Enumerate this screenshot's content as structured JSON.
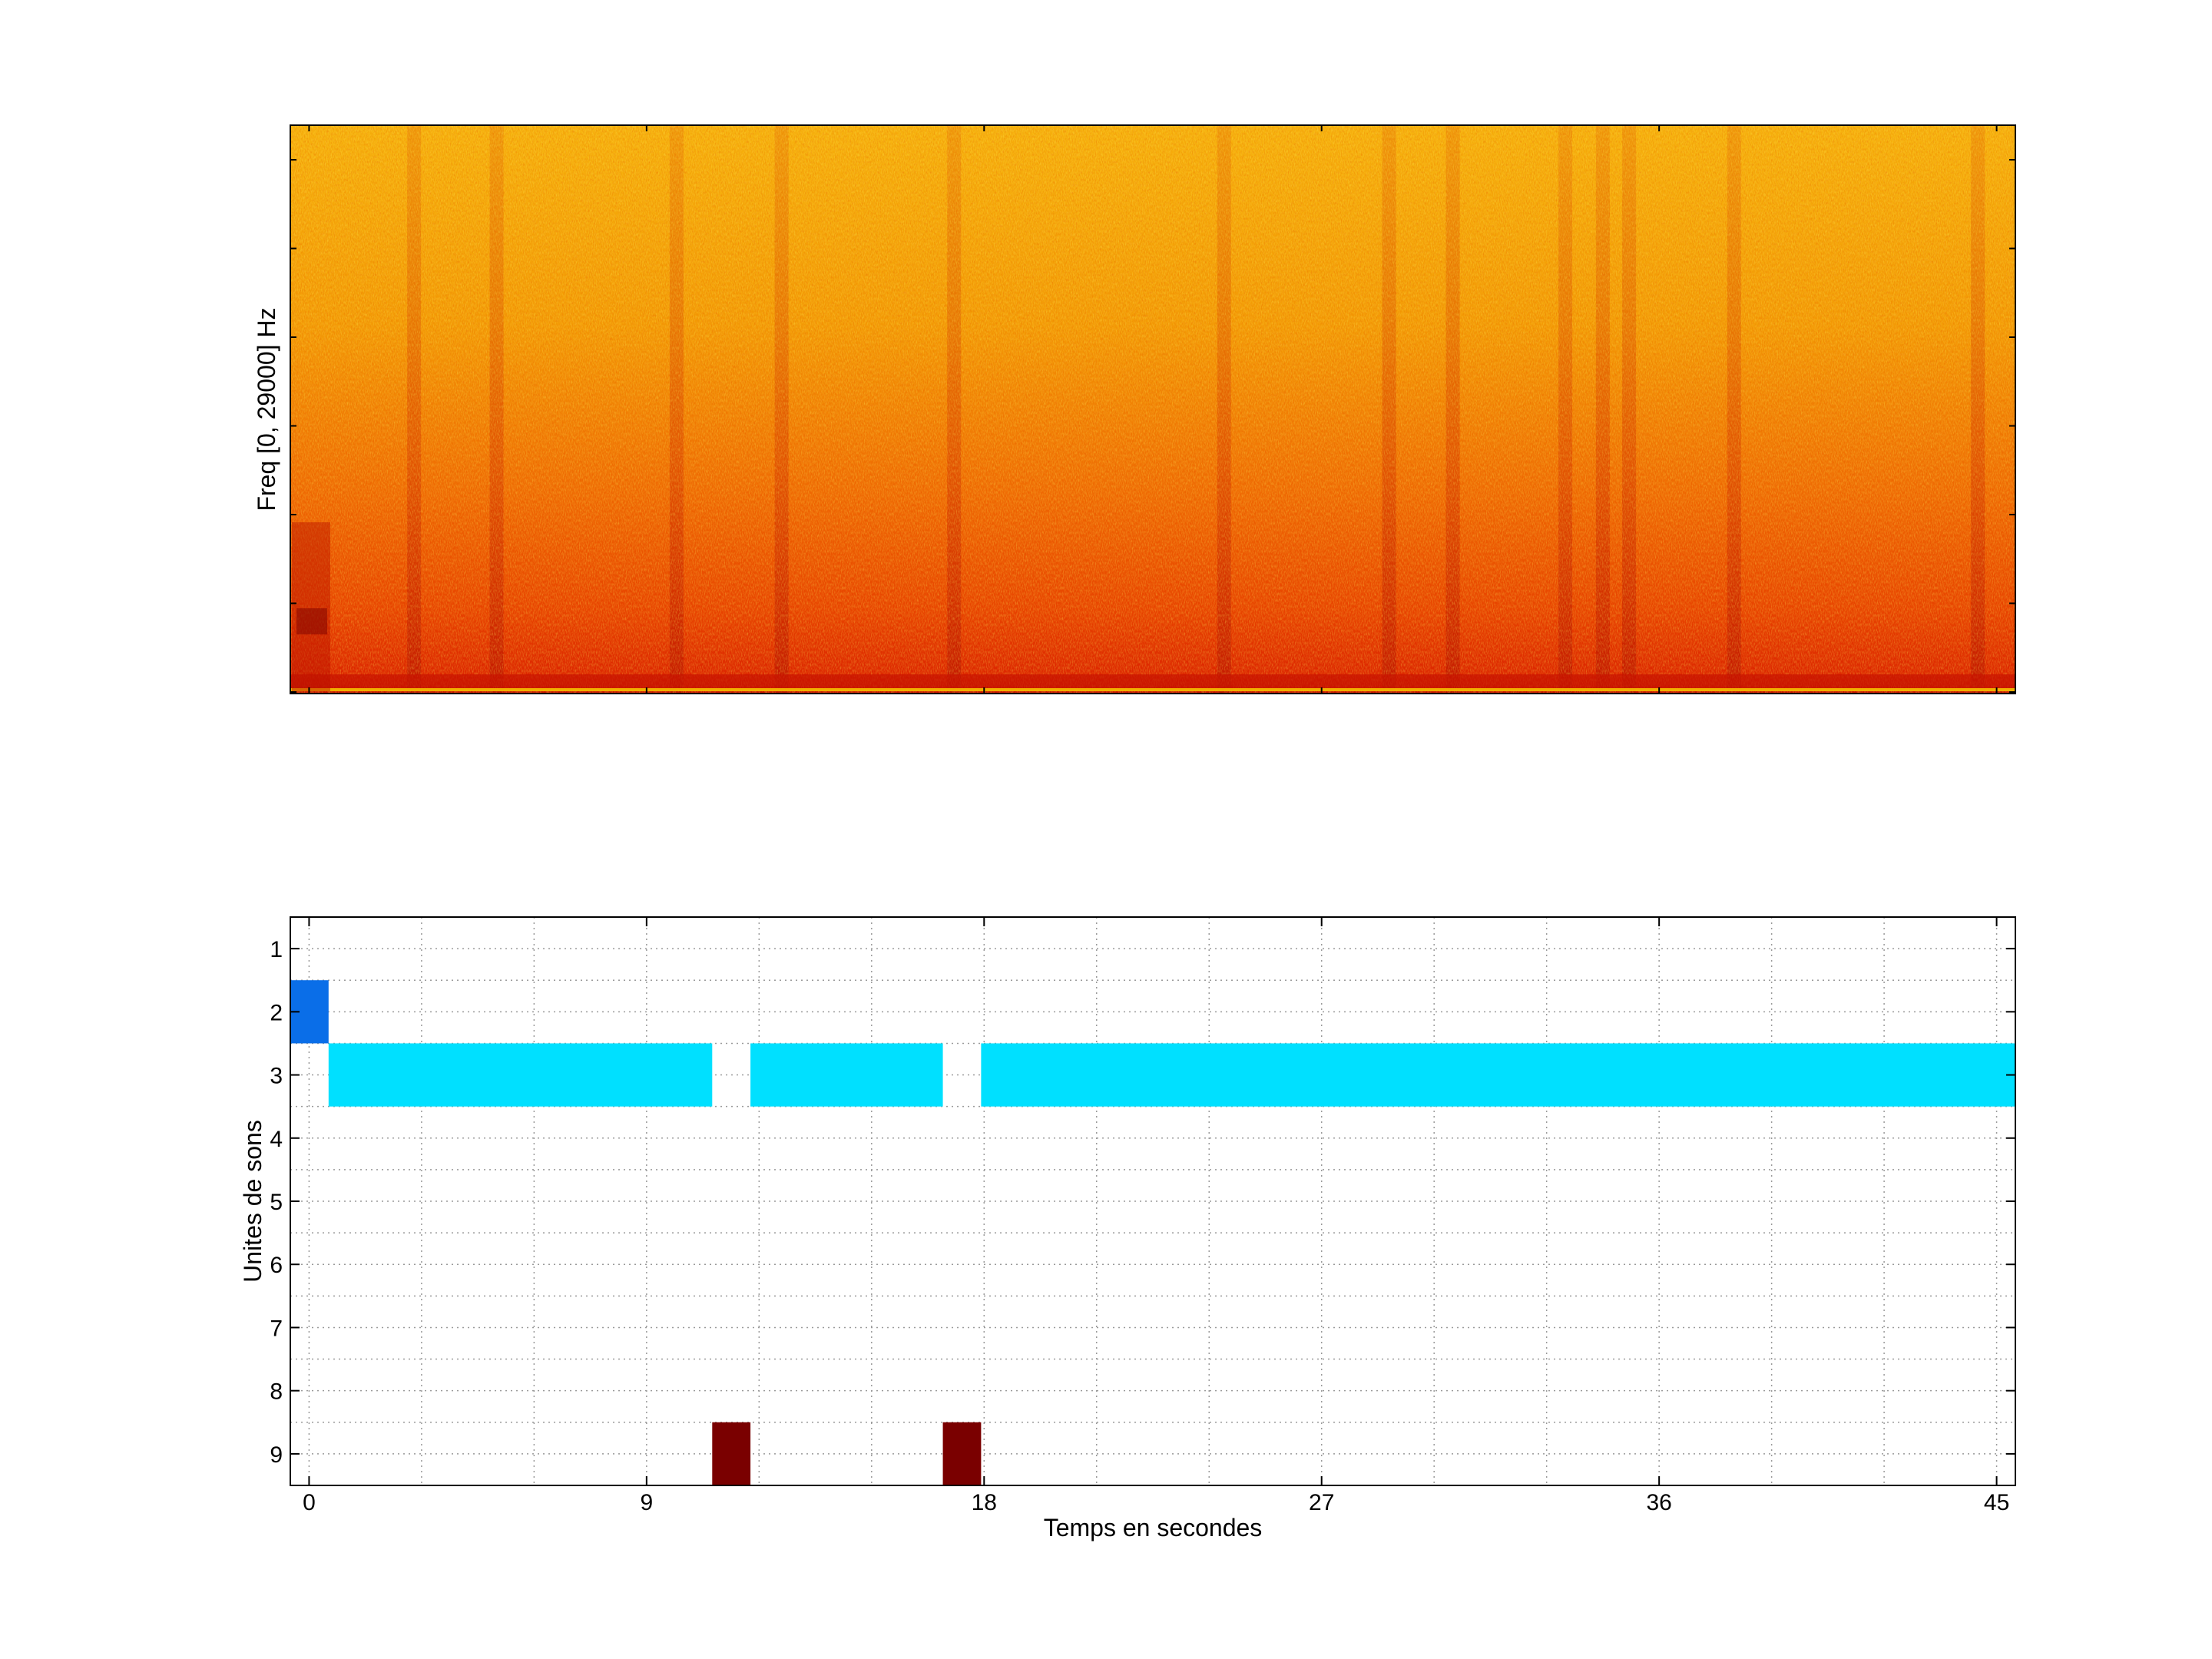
{
  "chart_data": [
    {
      "type": "heatmap",
      "title": "",
      "xlabel": "",
      "ylabel": "Freq [0, 29000] Hz",
      "colormap": [
        "#7a0000",
        "#d21a00",
        "#f05a00",
        "#f5a500",
        "#ffe000"
      ],
      "dark_time_bands_s": [
        2.8,
        5.0,
        9.8,
        12.6,
        17.2,
        24.4,
        28.8,
        30.5,
        33.5,
        34.5,
        35.2,
        38.0,
        44.5
      ],
      "grid": false
    },
    {
      "type": "bar",
      "title": "",
      "xlabel": "Temps en secondes",
      "ylabel": "Unites de sons",
      "xlim": [
        -0.5,
        45.5
      ],
      "ylim": [
        0.5,
        9.5
      ],
      "x_ticks": [
        0,
        9,
        18,
        27,
        36,
        45
      ],
      "y_ticks": [
        1,
        2,
        3,
        4,
        5,
        6,
        7,
        8,
        9
      ],
      "grid": true,
      "segments": [
        {
          "unit": 2,
          "start": -0.5,
          "end": 0.52,
          "color": "#0a6ee8"
        },
        {
          "unit": 3,
          "start": 0.52,
          "end": 10.75,
          "color": "#00e0ff"
        },
        {
          "unit": 3,
          "start": 11.77,
          "end": 16.9,
          "color": "#00e0ff"
        },
        {
          "unit": 3,
          "start": 17.92,
          "end": 45.5,
          "color": "#00e0ff"
        },
        {
          "unit": 9,
          "start": 10.75,
          "end": 11.77,
          "color": "#7a0000"
        },
        {
          "unit": 9,
          "start": 16.9,
          "end": 17.92,
          "color": "#7a0000"
        }
      ]
    }
  ]
}
